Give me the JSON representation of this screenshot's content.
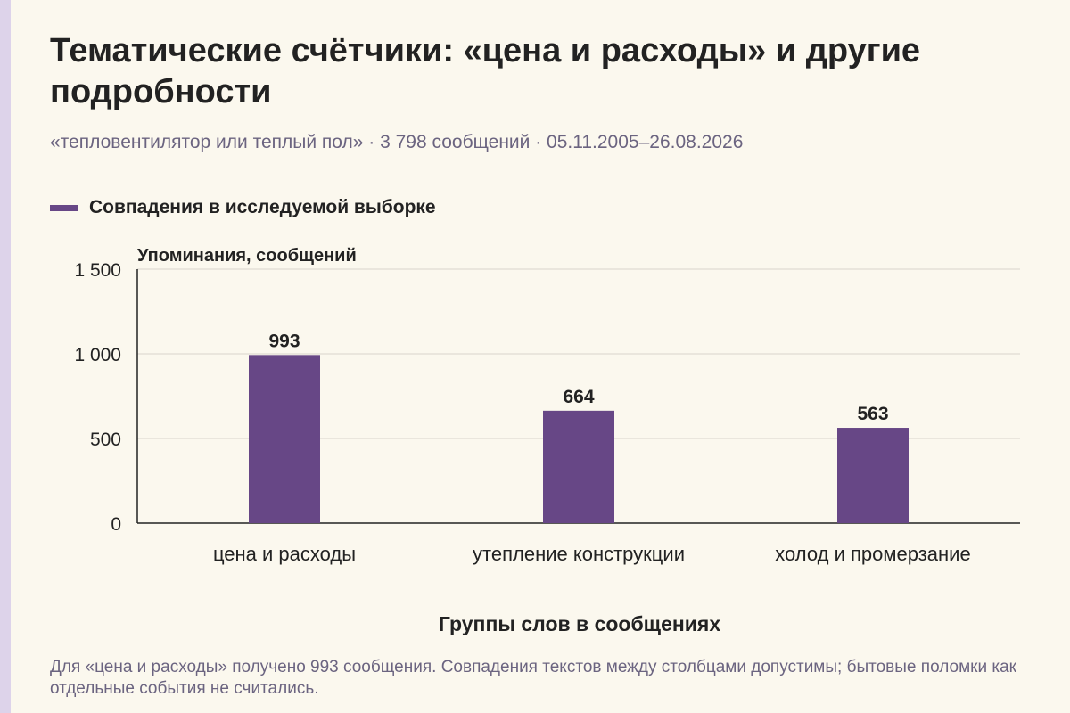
{
  "colors": {
    "bar": "#674786",
    "grid": "#d9d5cc",
    "axis": "#222222",
    "muted_text": "#6b6480"
  },
  "title": "Тематические счётчики: «цена и расходы» и другие подробности",
  "subtitle": "«тепловентилятор или теплый пол» · 3 798 сообщений · 05.11.2005–26.08.2026",
  "legend": {
    "label": "Совпадения в исследуемой выборке"
  },
  "footnote": "Для «цена и расходы» получено 993 сообщения. Совпадения текстов между столбцами допустимы; бытовые поломки как отдельные события не считались.",
  "chart_data": {
    "type": "bar",
    "categories": [
      "цена и расходы",
      "утепление конструкции",
      "холод и промерзание"
    ],
    "series": [
      {
        "name": "Совпадения в исследуемой выборке",
        "values": [
          993,
          664,
          563
        ]
      }
    ],
    "value_labels": [
      "993",
      "664",
      "563"
    ],
    "xlabel": "Группы слов в сообщениях",
    "ylabel": "Упоминания, сообщений",
    "ylim": [
      0,
      1500
    ],
    "y_ticks": [
      0,
      500,
      1000,
      1500
    ],
    "y_tick_labels": [
      "0",
      "500",
      "1 000",
      "1 500"
    ],
    "grid": true,
    "legend_position": "top-left"
  }
}
